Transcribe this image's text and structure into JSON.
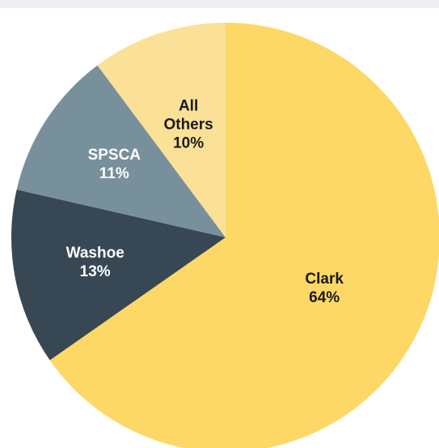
{
  "chart_data": {
    "type": "pie",
    "title": "",
    "slices": [
      {
        "name": "Clark",
        "value": 64,
        "value_label": "64%",
        "color": "#fdd866",
        "label_color": "#1a1a1a"
      },
      {
        "name": "Washoe",
        "value": 13,
        "value_label": "13%",
        "color": "#374854",
        "label_color": "#ffffff"
      },
      {
        "name": "SPSCA",
        "value": 11,
        "value_label": "11%",
        "color": "#78909c",
        "label_color": "#ffffff"
      },
      {
        "name": "All Others",
        "value": 10,
        "value_label": "10%",
        "color": "#fbe197",
        "label_color": "#1a1a1a"
      }
    ],
    "start_angle": "12 o'clock",
    "direction": "clockwise",
    "legend": "none",
    "data_labels": "inside slices (name and percent)"
  },
  "colors": {
    "background": "#ffffff",
    "top_band": "#eceef2"
  }
}
